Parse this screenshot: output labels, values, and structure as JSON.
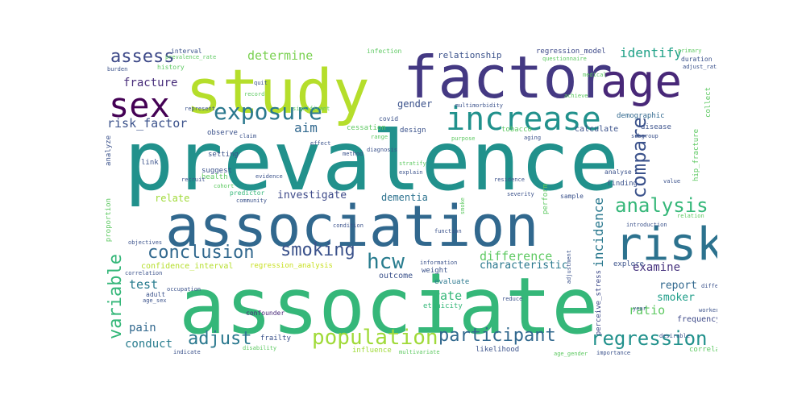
{
  "words": [
    {
      "text": "prevalence",
      "color": "#21918c"
    },
    {
      "text": "associate",
      "color": "#35b779"
    },
    {
      "text": "association",
      "color": "#31688e"
    },
    {
      "text": "study",
      "color": "#b5de2b"
    },
    {
      "text": "factor",
      "color": "#443983"
    },
    {
      "text": "age",
      "color": "#482878"
    },
    {
      "text": "risk",
      "color": "#2c728e"
    },
    {
      "text": "sex",
      "color": "#440154"
    },
    {
      "text": "increase",
      "color": "#21918c"
    },
    {
      "text": "exposure",
      "color": "#2a788e"
    },
    {
      "text": "conclusion",
      "color": "#31688e"
    },
    {
      "text": "smoking",
      "color": "#3b528b"
    },
    {
      "text": "hcw",
      "color": "#287c8e"
    },
    {
      "text": "analysis",
      "color": "#35b779"
    },
    {
      "text": "compare",
      "color": "#3b528b"
    },
    {
      "text": "population",
      "color": "#a0da39"
    },
    {
      "text": "participant",
      "color": "#31688e"
    },
    {
      "text": "regression",
      "color": "#21918c"
    },
    {
      "text": "adjust",
      "color": "#2a788e"
    },
    {
      "text": "variable",
      "color": "#35b779"
    },
    {
      "text": "assess",
      "color": "#3e4a89"
    },
    {
      "text": "risk_factor",
      "color": "#3b528b"
    },
    {
      "text": "determine",
      "color": "#7ad151"
    },
    {
      "text": "identify",
      "color": "#1fa187"
    },
    {
      "text": "fracture",
      "color": "#472c7a"
    },
    {
      "text": "aim",
      "color": "#31688e"
    },
    {
      "text": "investigate",
      "color": "#3e4a89"
    },
    {
      "text": "dementia",
      "color": "#2c728e"
    },
    {
      "text": "incidence",
      "color": "#2a788e"
    },
    {
      "text": "difference",
      "color": "#5ec962"
    },
    {
      "text": "characteristic",
      "color": "#2a788e"
    },
    {
      "text": "examine",
      "color": "#46327e"
    },
    {
      "text": "test",
      "color": "#287c8e"
    },
    {
      "text": "rate",
      "color": "#35b779"
    },
    {
      "text": "ratio",
      "color": "#5ec962"
    },
    {
      "text": "report",
      "color": "#31688e"
    },
    {
      "text": "smoker",
      "color": "#1f9e89"
    },
    {
      "text": "pain",
      "color": "#31688e"
    },
    {
      "text": "conduct",
      "color": "#287c8e"
    },
    {
      "text": "frequency",
      "color": "#3e4a89"
    },
    {
      "text": "gender",
      "color": "#3b528b"
    },
    {
      "text": "relationship",
      "color": "#3b528b"
    },
    {
      "text": "regression_model",
      "color": "#3e4a89"
    },
    {
      "text": "relate",
      "color": "#a0da39"
    },
    {
      "text": "confidence_interval",
      "color": "#b5de2b"
    },
    {
      "text": "regression_analysis",
      "color": "#c8e020"
    },
    {
      "text": "evaluate",
      "color": "#2a788e"
    },
    {
      "text": "outcome",
      "color": "#3b528b"
    },
    {
      "text": "ethnicity",
      "color": "#35b779"
    },
    {
      "text": "weight",
      "color": "#3b528b"
    },
    {
      "text": "explore",
      "color": "#3b528b"
    },
    {
      "text": "perceive_stress",
      "color": "#3e4a89"
    },
    {
      "text": "frailty",
      "color": "#3b528b"
    },
    {
      "text": "confounder",
      "color": "#482878"
    },
    {
      "text": "influence",
      "color": "#a0da39"
    },
    {
      "text": "likelihood",
      "color": "#3b528b"
    },
    {
      "text": "correlate",
      "color": "#5ec962"
    },
    {
      "text": "demographic",
      "color": "#31688e"
    },
    {
      "text": "calculate",
      "color": "#3b528b"
    },
    {
      "text": "tobacco",
      "color": "#5ec962"
    },
    {
      "text": "analyse",
      "color": "#3b528b"
    },
    {
      "text": "finding",
      "color": "#3b528b"
    },
    {
      "text": "sample",
      "color": "#3b528b"
    },
    {
      "text": "disease",
      "color": "#3b528b"
    },
    {
      "text": "suggest",
      "color": "#3b528b"
    },
    {
      "text": "health",
      "color": "#5ec962"
    },
    {
      "text": "setting",
      "color": "#3b528b"
    },
    {
      "text": "observe",
      "color": "#3b528b"
    },
    {
      "text": "link",
      "color": "#3b528b"
    },
    {
      "text": "predictor",
      "color": "#35b779"
    },
    {
      "text": "adult",
      "color": "#3b528b"
    },
    {
      "text": "design",
      "color": "#3b528b"
    },
    {
      "text": "cessation",
      "color": "#5ec962"
    },
    {
      "text": "interval",
      "color": "#3b528b"
    },
    {
      "text": "infection",
      "color": "#5ec962"
    },
    {
      "text": "history",
      "color": "#5ec962"
    },
    {
      "text": "burden",
      "color": "#3b528b"
    },
    {
      "text": "covid",
      "color": "#3b528b"
    },
    {
      "text": "duration",
      "color": "#3b528b"
    },
    {
      "text": "questionnaire",
      "color": "#5ec962"
    },
    {
      "text": "adjust_ratio",
      "color": "#3b528b"
    },
    {
      "text": "multimorbidity",
      "color": "#3b528b"
    },
    {
      "text": "hip_fracture",
      "color": "#5ec962"
    },
    {
      "text": "collect",
      "color": "#5ec962"
    },
    {
      "text": "subgroup",
      "color": "#3b528b"
    },
    {
      "text": "aging",
      "color": "#3b528b"
    },
    {
      "text": "diagnosis",
      "color": "#3b528b"
    },
    {
      "text": "stratify",
      "color": "#5ec962"
    },
    {
      "text": "explain",
      "color": "#3b528b"
    },
    {
      "text": "purpose",
      "color": "#5ec962"
    },
    {
      "text": "method",
      "color": "#3b528b"
    },
    {
      "text": "evidence",
      "color": "#3b528b"
    },
    {
      "text": "residence",
      "color": "#3b528b"
    },
    {
      "text": "community",
      "color": "#3b528b"
    },
    {
      "text": "cohort",
      "color": "#5ec962"
    },
    {
      "text": "recruit",
      "color": "#3b528b"
    },
    {
      "text": "proportion",
      "color": "#5ec962"
    },
    {
      "text": "analyze",
      "color": "#3b528b"
    },
    {
      "text": "value",
      "color": "#3b528b"
    },
    {
      "text": "introduction",
      "color": "#3b528b"
    },
    {
      "text": "perform",
      "color": "#5ec962"
    },
    {
      "text": "severity",
      "color": "#3b528b"
    },
    {
      "text": "smoke",
      "color": "#5ec962"
    },
    {
      "text": "condition",
      "color": "#3b528b"
    },
    {
      "text": "information",
      "color": "#3b528b"
    },
    {
      "text": "function",
      "color": "#3b528b"
    },
    {
      "text": "correlation",
      "color": "#3b528b"
    },
    {
      "text": "objectives",
      "color": "#3b528b"
    },
    {
      "text": "occupation",
      "color": "#3b528b"
    },
    {
      "text": "reduce",
      "color": "#3b528b"
    },
    {
      "text": "year",
      "color": "#3b528b"
    },
    {
      "text": "differ",
      "color": "#3b528b"
    },
    {
      "text": "worker",
      "color": "#3b528b"
    },
    {
      "text": "importance",
      "color": "#3b528b"
    },
    {
      "text": "age_gender",
      "color": "#5ec962"
    },
    {
      "text": "multivariate",
      "color": "#5ec962"
    },
    {
      "text": "disability",
      "color": "#5ec962"
    },
    {
      "text": "indicate",
      "color": "#3b528b"
    },
    {
      "text": "significant",
      "color": "#5ec962"
    },
    {
      "text": "represent",
      "color": "#3b528b"
    },
    {
      "text": "claim",
      "color": "#3b528b"
    },
    {
      "text": "effect",
      "color": "#3b528b"
    },
    {
      "text": "range",
      "color": "#5ec962"
    },
    {
      "text": "desirable",
      "color": "#3b528b"
    },
    {
      "text": "relation",
      "color": "#5ec962"
    },
    {
      "text": "achieve",
      "color": "#5ec962"
    },
    {
      "text": "adjustment",
      "color": "#3b528b"
    },
    {
      "text": "primary",
      "color": "#5ec962"
    },
    {
      "text": "quit",
      "color": "#3b528b"
    },
    {
      "text": "record",
      "color": "#5ec962"
    },
    {
      "text": "age_sex",
      "color": "#3b528b"
    },
    {
      "text": "medical",
      "color": "#5ec962"
    },
    {
      "text": "prevalence_rate",
      "color": "#5ec962"
    }
  ]
}
